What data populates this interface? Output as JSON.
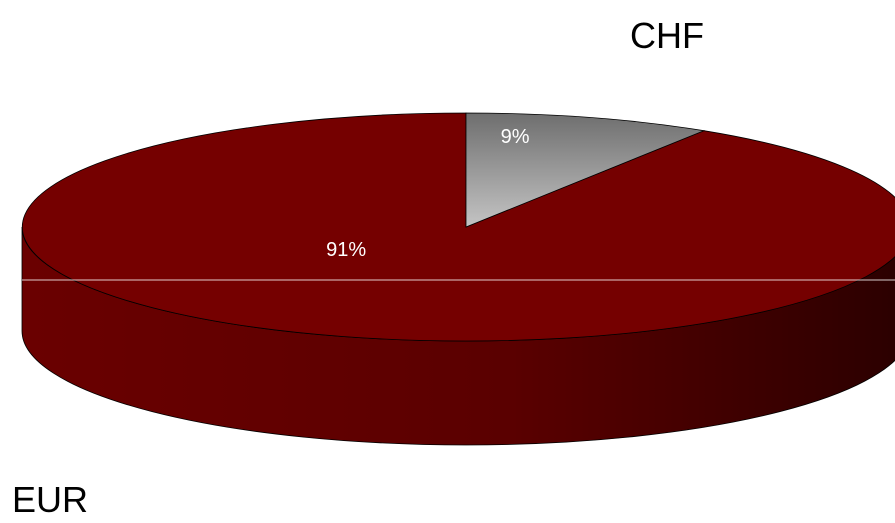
{
  "chart_data": {
    "type": "pie",
    "style": "3d",
    "categories": [
      "EUR",
      "CHF"
    ],
    "values": [
      91,
      9
    ],
    "data_labels": [
      "91%",
      "9%"
    ],
    "colors": {
      "EUR": "#750000",
      "CHF": "#a6a6a6"
    },
    "legend": "none"
  }
}
